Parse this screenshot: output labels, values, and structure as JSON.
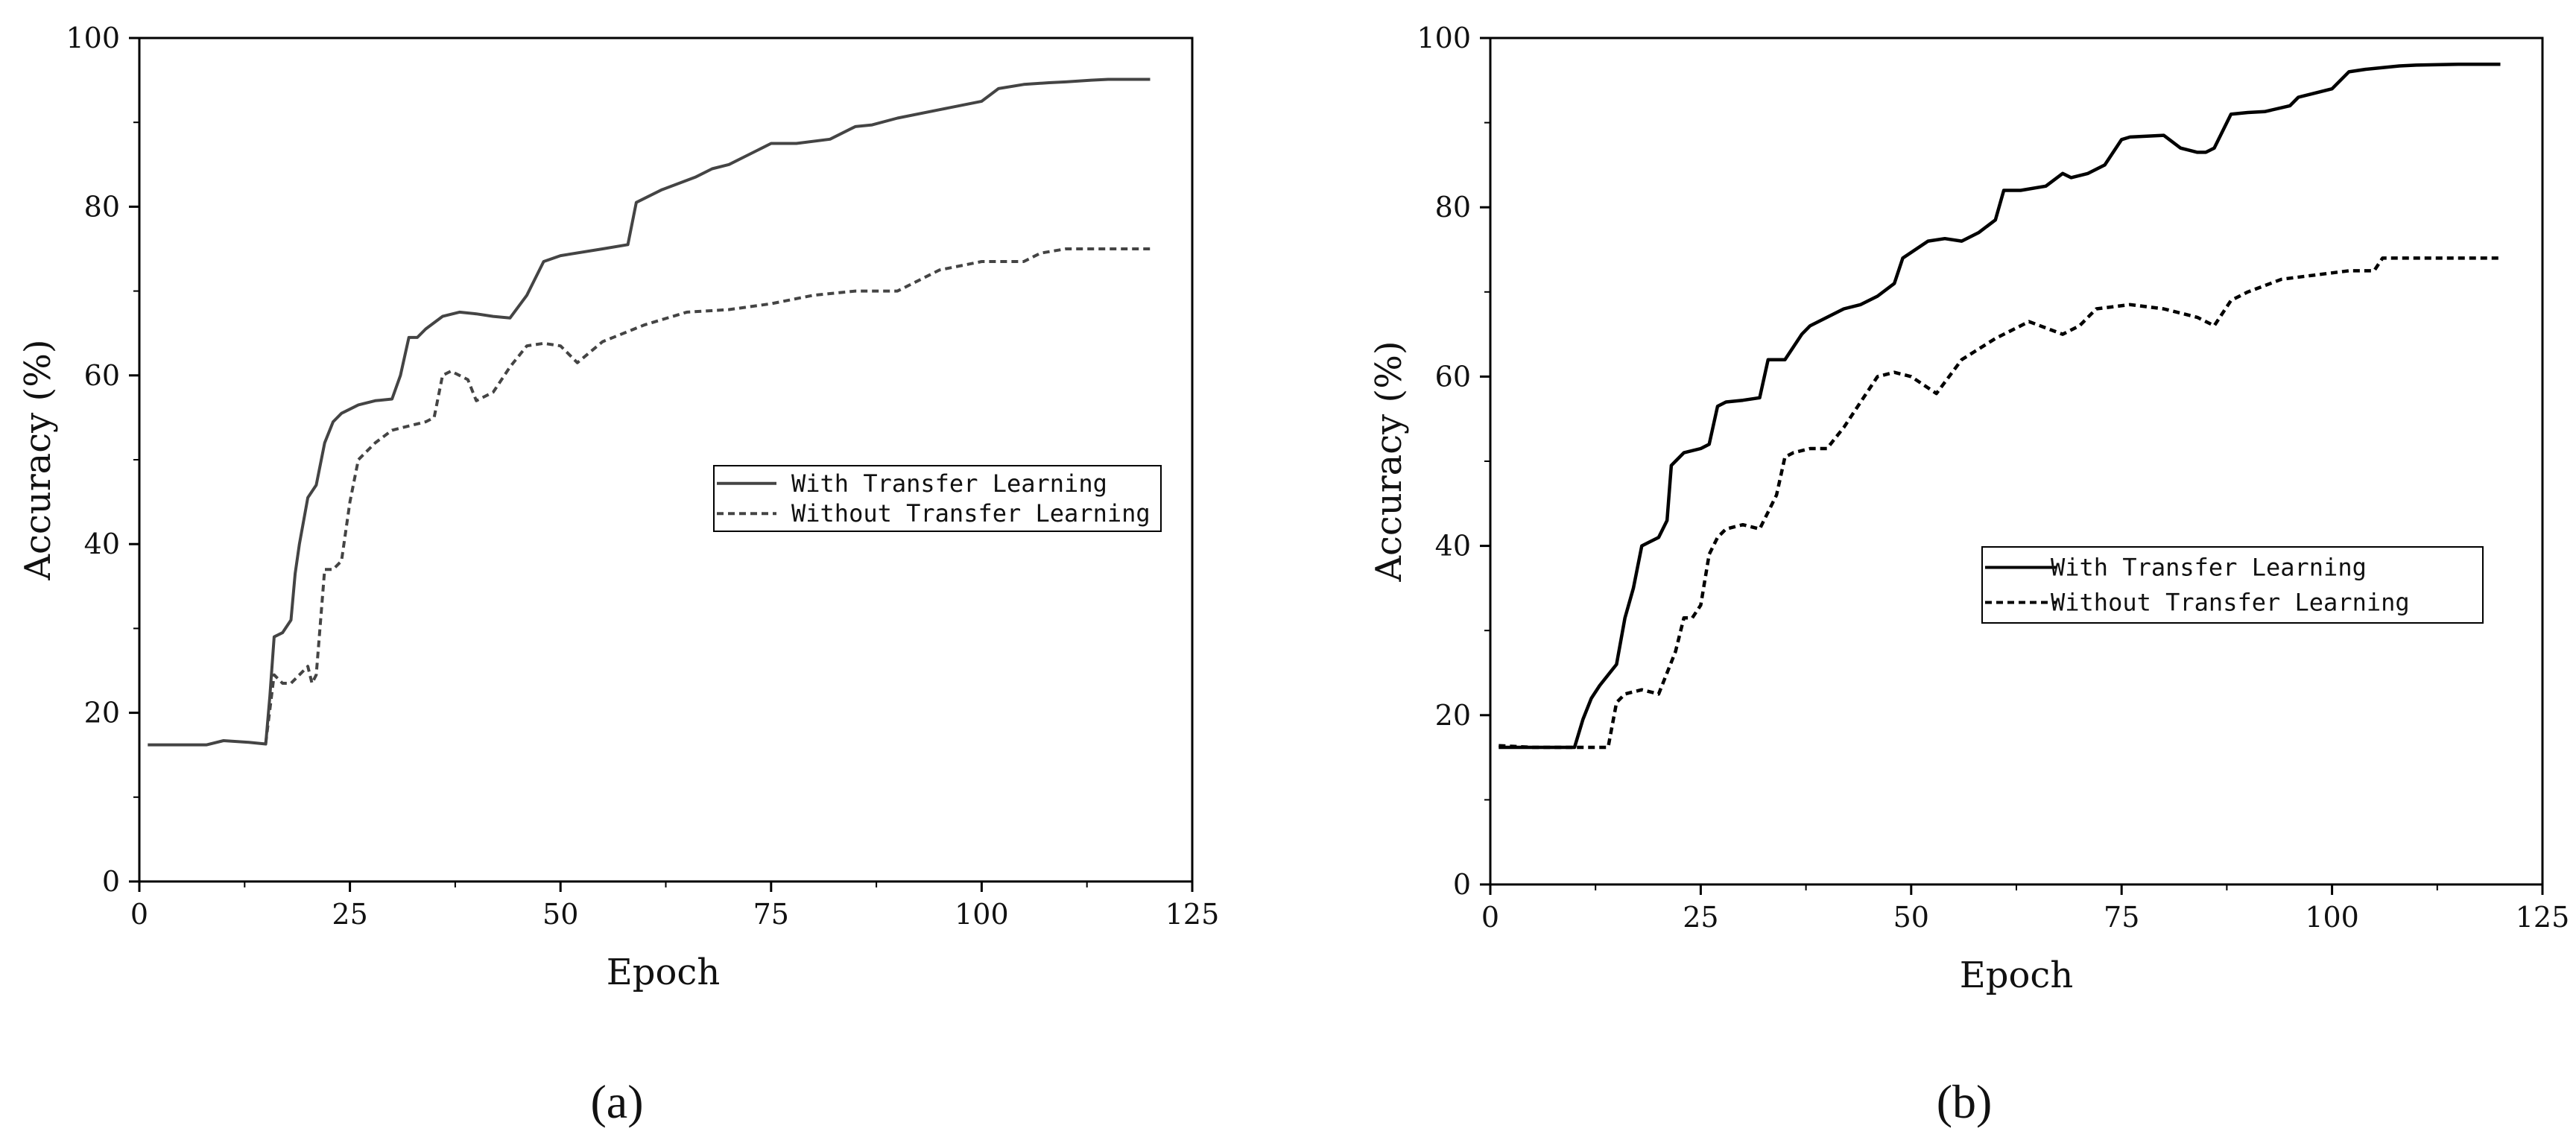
{
  "chart_data": [
    {
      "type": "line",
      "panel_label": "(a)",
      "xlabel": "Epoch",
      "ylabel": "Accuracy (%)",
      "xlim": [
        0,
        125
      ],
      "ylim": [
        0,
        100
      ],
      "xticks": [
        0,
        25,
        50,
        75,
        100,
        125
      ],
      "yticks": [
        0,
        20,
        40,
        60,
        80,
        100
      ],
      "grid": false,
      "legend_position": "right-middle",
      "line_color": "#444444",
      "series": [
        {
          "name": "With Transfer Learning",
          "style": "solid",
          "x": [
            1,
            8,
            10,
            13,
            15,
            15.5,
            16,
            17,
            18,
            18.5,
            19,
            20,
            21,
            22,
            23,
            24,
            26,
            28,
            30,
            31,
            32,
            33,
            34,
            36,
            38,
            40,
            42,
            44,
            46,
            48,
            50,
            55,
            58,
            59,
            60,
            62,
            66,
            68,
            70,
            72,
            74,
            75,
            78,
            82,
            85,
            87,
            90,
            95,
            100,
            102,
            105,
            108,
            110,
            113,
            115,
            120
          ],
          "y": [
            16.2,
            16.2,
            16.7,
            16.5,
            16.3,
            22,
            29,
            29.5,
            31,
            36.5,
            40,
            45.5,
            47,
            52,
            54.5,
            55.5,
            56.5,
            57,
            57.2,
            60,
            64.5,
            64.5,
            65.5,
            67,
            67.5,
            67.3,
            67,
            66.8,
            69.5,
            73.5,
            74.2,
            75,
            75.5,
            80.5,
            81,
            82,
            83.5,
            84.5,
            85,
            86,
            87,
            87.5,
            87.5,
            88,
            89.5,
            89.7,
            90.5,
            91.5,
            92.5,
            94,
            94.5,
            94.7,
            94.8,
            95,
            95.1,
            95.1
          ]
        },
        {
          "name": "Without Transfer Learning",
          "style": "dashed",
          "x": [
            15,
            16,
            17,
            18,
            19,
            20,
            20.5,
            21,
            22,
            23,
            24,
            25,
            26,
            28,
            30,
            32,
            34,
            35,
            36,
            37,
            38,
            39,
            40,
            42,
            44,
            46,
            48,
            50,
            52,
            55,
            60,
            65,
            70,
            75,
            80,
            85,
            90,
            92,
            95,
            100,
            105,
            107,
            110,
            115,
            120
          ],
          "y": [
            16.4,
            24.5,
            23.5,
            23.5,
            24.5,
            25.5,
            23.5,
            24.5,
            37,
            37,
            38,
            45,
            50,
            52,
            53.5,
            54,
            54.5,
            55,
            60,
            60.5,
            60,
            59.5,
            57,
            58,
            61,
            63.5,
            63.8,
            63.5,
            61.5,
            64,
            66,
            67.5,
            67.8,
            68.5,
            69.5,
            70,
            70,
            71,
            72.5,
            73.5,
            73.5,
            74.5,
            75,
            75,
            75
          ]
        }
      ]
    },
    {
      "type": "line",
      "panel_label": "(b)",
      "xlabel": "Epoch",
      "ylabel": "Accuracy (%)",
      "xlim": [
        0,
        125
      ],
      "ylim": [
        0,
        100
      ],
      "xticks": [
        0,
        25,
        50,
        75,
        100,
        125
      ],
      "yticks": [
        0,
        20,
        40,
        60,
        80,
        100
      ],
      "grid": false,
      "legend_position": "right-middle",
      "line_color": "#000000",
      "series": [
        {
          "name": "With Transfer Learning",
          "style": "solid",
          "x": [
            1,
            5,
            10,
            11,
            12,
            13,
            15,
            16,
            17,
            18,
            19,
            20,
            21,
            21.5,
            22,
            23,
            25,
            26,
            27,
            28,
            30,
            32,
            33,
            35,
            37,
            38,
            40,
            42,
            44,
            46,
            48,
            49,
            52,
            54,
            56,
            58,
            60,
            61,
            63,
            66,
            68,
            69,
            71,
            73,
            75,
            76,
            80,
            82,
            84,
            85,
            86,
            88,
            90,
            92,
            95,
            96,
            100,
            102,
            104,
            106,
            108,
            110,
            115,
            120
          ],
          "y": [
            16.2,
            16.2,
            16.2,
            19.5,
            22,
            23.5,
            26,
            31.5,
            35,
            40,
            40.5,
            41,
            43,
            49.5,
            50,
            51,
            51.5,
            52,
            56.5,
            57,
            57.2,
            57.5,
            62,
            62,
            65,
            66,
            67,
            68,
            68.5,
            69.5,
            71,
            74,
            76,
            76.3,
            76,
            77,
            78.5,
            82,
            82,
            82.5,
            84,
            83.5,
            84,
            85,
            88,
            88.3,
            88.5,
            87,
            86.5,
            86.5,
            87,
            91,
            91.2,
            91.3,
            92,
            93,
            94,
            96,
            96.3,
            96.5,
            96.7,
            96.8,
            96.9,
            96.9
          ]
        },
        {
          "name": "Without Transfer Learning",
          "style": "dashed",
          "x": [
            1,
            5,
            10,
            14,
            15,
            16,
            18,
            20,
            21,
            22,
            23,
            24,
            25,
            26,
            27,
            28,
            30,
            32,
            33,
            34,
            35,
            36,
            38,
            40,
            42,
            44,
            46,
            48,
            50,
            53,
            56,
            60,
            64,
            68,
            70,
            72,
            76,
            80,
            84,
            86,
            88,
            90,
            94,
            98,
            102,
            105,
            106,
            110,
            115,
            120
          ],
          "y": [
            16.4,
            16.2,
            16.2,
            16.2,
            21.5,
            22.5,
            23,
            22.5,
            25,
            27.5,
            31.5,
            31.5,
            33,
            39,
            41,
            42,
            42.5,
            42,
            44,
            46,
            50.5,
            51,
            51.5,
            51.5,
            54,
            57,
            60,
            60.5,
            60,
            58,
            62,
            64.5,
            66.5,
            65,
            66,
            68,
            68.5,
            68,
            67,
            66,
            69,
            70,
            71.5,
            72,
            72.5,
            72.5,
            74,
            74,
            74,
            74
          ]
        }
      ]
    }
  ]
}
